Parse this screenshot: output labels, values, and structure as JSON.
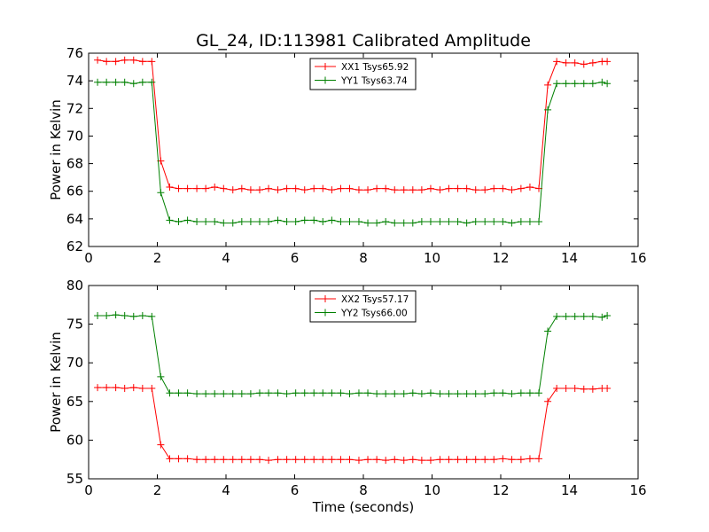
{
  "chart_data": [
    {
      "type": "line",
      "title": "GL_24, ID:113981 Calibrated Amplitude",
      "xlabel": "",
      "ylabel": "Power in Kelvin",
      "xlim": [
        0,
        16
      ],
      "ylim": [
        62,
        76
      ],
      "xticks": [
        0,
        2,
        4,
        6,
        8,
        10,
        12,
        14,
        16
      ],
      "yticks": [
        62,
        64,
        66,
        68,
        70,
        72,
        74,
        76
      ],
      "legend_position": "top-center",
      "x": [
        0.26,
        0.52,
        0.79,
        1.05,
        1.31,
        1.57,
        1.84,
        2.1,
        2.36,
        2.62,
        2.88,
        3.15,
        3.41,
        3.67,
        3.93,
        4.2,
        4.46,
        4.72,
        4.98,
        5.24,
        5.51,
        5.77,
        6.03,
        6.29,
        6.56,
        6.82,
        7.08,
        7.34,
        7.6,
        7.87,
        8.13,
        8.39,
        8.65,
        8.91,
        9.18,
        9.44,
        9.7,
        9.96,
        10.23,
        10.49,
        10.75,
        11.01,
        11.27,
        11.54,
        11.8,
        12.06,
        12.32,
        12.59,
        12.85,
        13.11,
        13.37,
        13.63,
        13.9,
        14.16,
        14.42,
        14.68,
        14.95,
        15.1
      ],
      "series": [
        {
          "name": "XX1 Tsys65.92",
          "color": "#ff0000",
          "values": [
            75.5,
            75.4,
            75.4,
            75.5,
            75.5,
            75.4,
            75.4,
            68.2,
            66.3,
            66.2,
            66.2,
            66.2,
            66.2,
            66.3,
            66.2,
            66.1,
            66.2,
            66.1,
            66.1,
            66.2,
            66.1,
            66.2,
            66.2,
            66.1,
            66.2,
            66.2,
            66.1,
            66.2,
            66.2,
            66.1,
            66.1,
            66.2,
            66.2,
            66.1,
            66.1,
            66.1,
            66.1,
            66.2,
            66.1,
            66.2,
            66.2,
            66.2,
            66.1,
            66.1,
            66.2,
            66.2,
            66.1,
            66.2,
            66.3,
            66.2,
            73.7,
            75.4,
            75.3,
            75.3,
            75.2,
            75.3,
            75.4,
            75.4
          ]
        },
        {
          "name": "YY1 Tsys63.74",
          "color": "#008000",
          "values": [
            73.9,
            73.9,
            73.9,
            73.9,
            73.8,
            73.9,
            73.9,
            65.9,
            63.9,
            63.8,
            63.9,
            63.8,
            63.8,
            63.8,
            63.7,
            63.7,
            63.8,
            63.8,
            63.8,
            63.8,
            63.9,
            63.8,
            63.8,
            63.9,
            63.9,
            63.8,
            63.9,
            63.8,
            63.8,
            63.8,
            63.7,
            63.7,
            63.8,
            63.7,
            63.7,
            63.7,
            63.8,
            63.8,
            63.8,
            63.8,
            63.8,
            63.7,
            63.8,
            63.8,
            63.8,
            63.8,
            63.7,
            63.8,
            63.8,
            63.8,
            71.9,
            73.8,
            73.8,
            73.8,
            73.8,
            73.8,
            73.9,
            73.8
          ]
        }
      ]
    },
    {
      "type": "line",
      "title": "",
      "xlabel": "Time (seconds)",
      "ylabel": "Power in Kelvin",
      "xlim": [
        0,
        16
      ],
      "ylim": [
        55,
        80
      ],
      "xticks": [
        0,
        2,
        4,
        6,
        8,
        10,
        12,
        14,
        16
      ],
      "yticks": [
        55,
        60,
        65,
        70,
        75,
        80
      ],
      "legend_position": "top-center",
      "x": [
        0.26,
        0.52,
        0.79,
        1.05,
        1.31,
        1.57,
        1.84,
        2.1,
        2.36,
        2.62,
        2.88,
        3.15,
        3.41,
        3.67,
        3.93,
        4.2,
        4.46,
        4.72,
        4.98,
        5.24,
        5.51,
        5.77,
        6.03,
        6.29,
        6.56,
        6.82,
        7.08,
        7.34,
        7.6,
        7.87,
        8.13,
        8.39,
        8.65,
        8.91,
        9.18,
        9.44,
        9.7,
        9.96,
        10.23,
        10.49,
        10.75,
        11.01,
        11.27,
        11.54,
        11.8,
        12.06,
        12.32,
        12.59,
        12.85,
        13.11,
        13.37,
        13.63,
        13.9,
        14.16,
        14.42,
        14.68,
        14.95,
        15.1
      ],
      "series": [
        {
          "name": "XX2 Tsys57.17",
          "color": "#ff0000",
          "values": [
            66.8,
            66.8,
            66.8,
            66.7,
            66.8,
            66.7,
            66.7,
            59.4,
            57.6,
            57.6,
            57.6,
            57.5,
            57.5,
            57.5,
            57.5,
            57.5,
            57.5,
            57.5,
            57.5,
            57.4,
            57.5,
            57.5,
            57.5,
            57.5,
            57.5,
            57.5,
            57.5,
            57.5,
            57.5,
            57.4,
            57.5,
            57.5,
            57.4,
            57.5,
            57.4,
            57.5,
            57.4,
            57.4,
            57.5,
            57.5,
            57.5,
            57.5,
            57.5,
            57.5,
            57.5,
            57.6,
            57.5,
            57.5,
            57.6,
            57.6,
            65.0,
            66.7,
            66.7,
            66.7,
            66.6,
            66.6,
            66.7,
            66.7
          ]
        },
        {
          "name": "YY2 Tsys66.00",
          "color": "#008000",
          "values": [
            76.1,
            76.1,
            76.2,
            76.1,
            76.0,
            76.1,
            76.0,
            68.2,
            66.1,
            66.1,
            66.1,
            66.0,
            66.0,
            66.0,
            66.0,
            66.0,
            66.0,
            66.0,
            66.1,
            66.1,
            66.1,
            66.0,
            66.1,
            66.1,
            66.1,
            66.1,
            66.1,
            66.1,
            66.0,
            66.1,
            66.1,
            66.0,
            66.0,
            66.0,
            66.0,
            66.1,
            66.0,
            66.1,
            66.0,
            66.0,
            66.0,
            66.0,
            66.0,
            66.0,
            66.1,
            66.1,
            66.0,
            66.1,
            66.1,
            66.1,
            74.1,
            76.0,
            76.0,
            76.0,
            76.0,
            76.0,
            75.9,
            76.1
          ]
        }
      ]
    }
  ]
}
